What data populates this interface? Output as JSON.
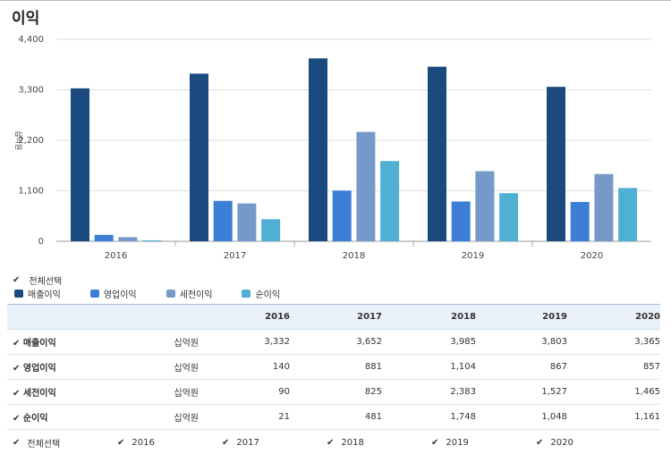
{
  "title": "이익",
  "select_all_label": "전체선택",
  "chart_data": {
    "type": "bar",
    "categories": [
      "2016",
      "2017",
      "2018",
      "2019",
      "2020"
    ],
    "ylim": [
      0,
      4400
    ],
    "yticks": [
      "4,400",
      "3,300",
      "2,200",
      "1,100",
      "0"
    ],
    "ylabel": "십억원",
    "grid": true,
    "legend_position": "bottom-left",
    "series": [
      {
        "name": "매출이익",
        "color": "#1b4a7e",
        "values": [
          3332,
          3652,
          3985,
          3803,
          3365
        ]
      },
      {
        "name": "영업이익",
        "color": "#3d7fd6",
        "values": [
          140,
          881,
          1104,
          867,
          857
        ]
      },
      {
        "name": "세전이익",
        "color": "#7599c9",
        "values": [
          90,
          825,
          2383,
          1527,
          1465
        ]
      },
      {
        "name": "순이익",
        "color": "#4fb0d3",
        "values": [
          21,
          481,
          1748,
          1048,
          1161
        ]
      }
    ]
  },
  "table": {
    "headers": [
      "",
      "",
      "2016",
      "2017",
      "2018",
      "2019",
      "2020"
    ],
    "rows": [
      {
        "name": "매출이익",
        "unit": "십억원",
        "values": [
          "3,332",
          "3,652",
          "3,985",
          "3,803",
          "3,365"
        ]
      },
      {
        "name": "영업이익",
        "unit": "십억원",
        "values": [
          "140",
          "881",
          "1,104",
          "867",
          "857"
        ]
      },
      {
        "name": "세전이익",
        "unit": "십억원",
        "values": [
          "90",
          "825",
          "2,383",
          "1,527",
          "1,465"
        ]
      },
      {
        "name": "순이익",
        "unit": "십억원",
        "values": [
          "21",
          "481",
          "1,748",
          "1,048",
          "1,161"
        ]
      }
    ]
  },
  "year_filters": [
    "2016",
    "2017",
    "2018",
    "2019",
    "2020"
  ],
  "check_glyph": "✔"
}
